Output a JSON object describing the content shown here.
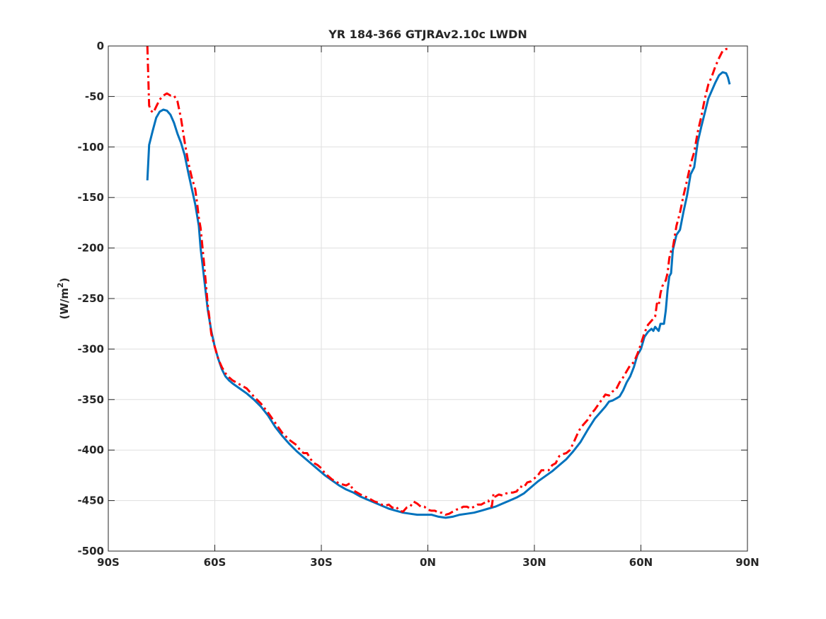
{
  "chart_data": {
    "type": "line",
    "title": "YR 184-366 GTJRAv2.10c LWDN",
    "xlabel": "",
    "ylabel": "(W/m",
    "ylabel_sup": "2",
    "ylabel_end": ")",
    "xlim": [
      -90,
      90
    ],
    "ylim": [
      -500,
      0
    ],
    "x_ticks": [
      -90,
      -60,
      -30,
      0,
      30,
      60,
      90
    ],
    "x_tick_labels": [
      "90S",
      "60S",
      "30S",
      "0N",
      "30N",
      "60N",
      "90N"
    ],
    "y_ticks": [
      0,
      -50,
      -100,
      -150,
      -200,
      -250,
      -300,
      -350,
      -400,
      -450,
      -500
    ],
    "y_tick_labels": [
      "0",
      "-50",
      "-100",
      "-150",
      "-200",
      "-250",
      "-300",
      "-350",
      "-400",
      "-450",
      "-500"
    ],
    "grid": true,
    "legend": "none",
    "series": [
      {
        "color": "#0072BD",
        "style": "solid",
        "points": [
          [
            -79,
            -133
          ],
          [
            -78.5,
            -98
          ],
          [
            -77.5,
            -84
          ],
          [
            -76.5,
            -71
          ],
          [
            -75.5,
            -65
          ],
          [
            -74.5,
            -63
          ],
          [
            -73.5,
            -64
          ],
          [
            -72.5,
            -68
          ],
          [
            -71.5,
            -76
          ],
          [
            -70.5,
            -87
          ],
          [
            -69.5,
            -96
          ],
          [
            -68.5,
            -108
          ],
          [
            -67.5,
            -125
          ],
          [
            -66.5,
            -141
          ],
          [
            -65.5,
            -157
          ],
          [
            -64.5,
            -178
          ],
          [
            -64,
            -200
          ],
          [
            -63,
            -230
          ],
          [
            -62,
            -261
          ],
          [
            -61,
            -282
          ],
          [
            -60,
            -298
          ],
          [
            -59,
            -310
          ],
          [
            -58,
            -320
          ],
          [
            -57,
            -327
          ],
          [
            -56,
            -331
          ],
          [
            -55,
            -334
          ],
          [
            -53,
            -339
          ],
          [
            -51,
            -344
          ],
          [
            -49,
            -350
          ],
          [
            -47,
            -357
          ],
          [
            -45,
            -366
          ],
          [
            -43,
            -377
          ],
          [
            -41,
            -386
          ],
          [
            -39,
            -394
          ],
          [
            -37,
            -401
          ],
          [
            -35,
            -407
          ],
          [
            -33,
            -413
          ],
          [
            -31,
            -419
          ],
          [
            -29,
            -425
          ],
          [
            -27,
            -430
          ],
          [
            -25,
            -435
          ],
          [
            -23,
            -439
          ],
          [
            -21,
            -442
          ],
          [
            -19,
            -446
          ],
          [
            -17,
            -449
          ],
          [
            -15,
            -452
          ],
          [
            -13,
            -455
          ],
          [
            -11,
            -458
          ],
          [
            -9,
            -460
          ],
          [
            -7,
            -462
          ],
          [
            -5,
            -463
          ],
          [
            -3,
            -464
          ],
          [
            -1,
            -464
          ],
          [
            1,
            -464
          ],
          [
            3,
            -466
          ],
          [
            5,
            -467
          ],
          [
            7,
            -466
          ],
          [
            9,
            -464
          ],
          [
            11,
            -463
          ],
          [
            13,
            -462
          ],
          [
            15,
            -460
          ],
          [
            17,
            -458
          ],
          [
            19,
            -456
          ],
          [
            21,
            -453
          ],
          [
            23,
            -450
          ],
          [
            25,
            -447
          ],
          [
            27,
            -443
          ],
          [
            29,
            -437
          ],
          [
            31,
            -431
          ],
          [
            33,
            -426
          ],
          [
            35,
            -421
          ],
          [
            37,
            -415
          ],
          [
            39,
            -409
          ],
          [
            41,
            -401
          ],
          [
            43,
            -392
          ],
          [
            45,
            -380
          ],
          [
            47,
            -369
          ],
          [
            49,
            -361
          ],
          [
            50,
            -357
          ],
          [
            51,
            -352
          ],
          [
            52,
            -351
          ],
          [
            53,
            -349
          ],
          [
            54,
            -347
          ],
          [
            55,
            -341
          ],
          [
            56,
            -333
          ],
          [
            57,
            -327
          ],
          [
            58,
            -318
          ],
          [
            59,
            -306
          ],
          [
            60,
            -300
          ],
          [
            61,
            -288
          ],
          [
            62,
            -283
          ],
          [
            63,
            -280
          ],
          [
            63.5,
            -282
          ],
          [
            64,
            -278
          ],
          [
            65,
            -282
          ],
          [
            65.5,
            -275
          ],
          [
            66.5,
            -275
          ],
          [
            67,
            -262
          ],
          [
            67.5,
            -242
          ],
          [
            68,
            -228
          ],
          [
            68.5,
            -225
          ],
          [
            69,
            -202
          ],
          [
            70,
            -187
          ],
          [
            71,
            -182
          ],
          [
            72,
            -164
          ],
          [
            73,
            -148
          ],
          [
            74,
            -127
          ],
          [
            75,
            -120
          ],
          [
            76,
            -95
          ],
          [
            77,
            -80
          ],
          [
            78,
            -66
          ],
          [
            79,
            -52
          ],
          [
            80,
            -44
          ],
          [
            81,
            -36
          ],
          [
            82,
            -29
          ],
          [
            83,
            -26
          ],
          [
            84,
            -27
          ],
          [
            84.5,
            -31
          ],
          [
            85,
            -38
          ]
        ]
      },
      {
        "color": "#FF0000",
        "style": "dashdot",
        "points": [
          [
            -79,
            0
          ],
          [
            -78.5,
            -59
          ],
          [
            -78,
            -64
          ],
          [
            -77.3,
            -66
          ],
          [
            -76.5,
            -60
          ],
          [
            -75.5,
            -53
          ],
          [
            -74.5,
            -49
          ],
          [
            -73.5,
            -47
          ],
          [
            -72.5,
            -49
          ],
          [
            -71.5,
            -49
          ],
          [
            -70.5,
            -55
          ],
          [
            -69.5,
            -72
          ],
          [
            -68.5,
            -95
          ],
          [
            -67.5,
            -115
          ],
          [
            -66.5,
            -130
          ],
          [
            -65.5,
            -142
          ],
          [
            -65,
            -155
          ],
          [
            -64.5,
            -170
          ],
          [
            -64,
            -180
          ],
          [
            -63.5,
            -198
          ],
          [
            -63,
            -216
          ],
          [
            -62.5,
            -236
          ],
          [
            -62,
            -256
          ],
          [
            -61.5,
            -270
          ],
          [
            -61,
            -285
          ],
          [
            -60,
            -298
          ],
          [
            -59,
            -310
          ],
          [
            -58,
            -318
          ],
          [
            -57,
            -324
          ],
          [
            -56,
            -328
          ],
          [
            -55,
            -331
          ],
          [
            -53,
            -335
          ],
          [
            -51,
            -339
          ],
          [
            -49,
            -347
          ],
          [
            -47,
            -354
          ],
          [
            -45,
            -363
          ],
          [
            -43,
            -373
          ],
          [
            -41,
            -383
          ],
          [
            -39,
            -390
          ],
          [
            -37,
            -395
          ],
          [
            -36,
            -400
          ],
          [
            -35,
            -403
          ],
          [
            -34,
            -403
          ],
          [
            -33,
            -409
          ],
          [
            -32,
            -413
          ],
          [
            -31,
            -415
          ],
          [
            -30,
            -418
          ],
          [
            -29,
            -423
          ],
          [
            -28,
            -426
          ],
          [
            -27,
            -429
          ],
          [
            -26,
            -431
          ],
          [
            -25,
            -433
          ],
          [
            -24,
            -434
          ],
          [
            -23,
            -435
          ],
          [
            -22,
            -433
          ],
          [
            -21,
            -440
          ],
          [
            -19,
            -444
          ],
          [
            -17,
            -447
          ],
          [
            -15,
            -451
          ],
          [
            -14,
            -452
          ],
          [
            -13,
            -454
          ],
          [
            -12,
            -455
          ],
          [
            -11,
            -454
          ],
          [
            -10,
            -457
          ],
          [
            -9,
            -456
          ],
          [
            -8,
            -460
          ],
          [
            -7,
            -461
          ],
          [
            -6,
            -457
          ],
          [
            -5,
            -456
          ],
          [
            -4,
            -451
          ],
          [
            -3,
            -453
          ],
          [
            -2,
            -456
          ],
          [
            -1,
            -456
          ],
          [
            0,
            -459
          ],
          [
            1,
            -460
          ],
          [
            2,
            -460
          ],
          [
            3,
            -462
          ],
          [
            4,
            -462
          ],
          [
            5,
            -464
          ],
          [
            6,
            -463
          ],
          [
            7,
            -461
          ],
          [
            8,
            -459
          ],
          [
            9,
            -458
          ],
          [
            10,
            -456
          ],
          [
            11,
            -456
          ],
          [
            12,
            -458
          ],
          [
            13,
            -456
          ],
          [
            14,
            -454
          ],
          [
            15,
            -454
          ],
          [
            16,
            -452
          ],
          [
            17,
            -450
          ],
          [
            18,
            -456
          ],
          [
            18.5,
            -443
          ],
          [
            19,
            -446
          ],
          [
            20,
            -444
          ],
          [
            21,
            -445
          ],
          [
            22,
            -443
          ],
          [
            23,
            -442
          ],
          [
            24,
            -442
          ],
          [
            25,
            -441
          ],
          [
            26,
            -436
          ],
          [
            27,
            -437
          ],
          [
            28,
            -432
          ],
          [
            29,
            -431
          ],
          [
            30,
            -428
          ],
          [
            31,
            -425
          ],
          [
            32,
            -420
          ],
          [
            33,
            -420
          ],
          [
            34,
            -420
          ],
          [
            35,
            -415
          ],
          [
            36,
            -413
          ],
          [
            37,
            -406
          ],
          [
            38,
            -404
          ],
          [
            39,
            -403
          ],
          [
            40,
            -400
          ],
          [
            41,
            -393
          ],
          [
            42,
            -385
          ],
          [
            43,
            -378
          ],
          [
            44,
            -374
          ],
          [
            45,
            -370
          ],
          [
            46,
            -364
          ],
          [
            47,
            -360
          ],
          [
            48,
            -355
          ],
          [
            49,
            -350
          ],
          [
            50,
            -345
          ],
          [
            51,
            -346
          ],
          [
            52,
            -342
          ],
          [
            53,
            -340
          ],
          [
            54,
            -333
          ],
          [
            55,
            -328
          ],
          [
            56,
            -322
          ],
          [
            57,
            -316
          ],
          [
            58,
            -313
          ],
          [
            59,
            -305
          ],
          [
            60,
            -295
          ],
          [
            61,
            -284
          ],
          [
            62,
            -276
          ],
          [
            63,
            -272
          ],
          [
            64,
            -268
          ],
          [
            64.5,
            -255
          ],
          [
            65,
            -257
          ],
          [
            65.5,
            -245
          ],
          [
            66,
            -238
          ],
          [
            67,
            -232
          ],
          [
            67.5,
            -225
          ],
          [
            68,
            -210
          ],
          [
            68.5,
            -203
          ],
          [
            69,
            -200
          ],
          [
            70,
            -178
          ],
          [
            71,
            -165
          ],
          [
            72,
            -148
          ],
          [
            73,
            -133
          ],
          [
            74,
            -117
          ],
          [
            75,
            -105
          ],
          [
            76,
            -85
          ],
          [
            77,
            -70
          ],
          [
            78,
            -52
          ],
          [
            79,
            -38
          ],
          [
            80,
            -30
          ],
          [
            81,
            -20
          ],
          [
            82,
            -12
          ],
          [
            83,
            -5
          ],
          [
            84,
            -3
          ],
          [
            85,
            -3
          ]
        ]
      }
    ]
  }
}
